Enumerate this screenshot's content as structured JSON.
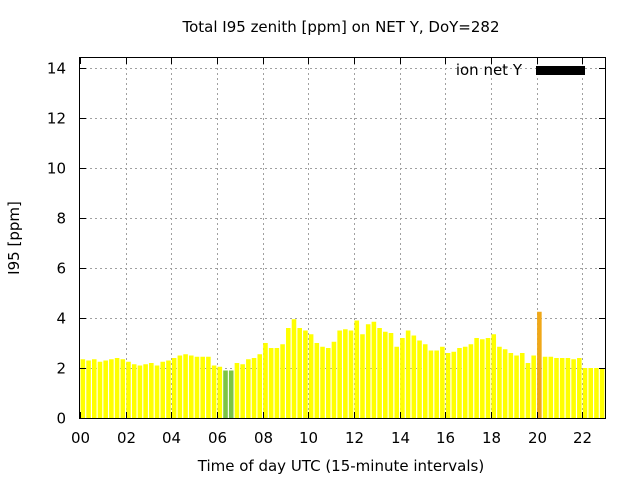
{
  "chart_data": {
    "type": "bar",
    "title": "Total I95 zenith [ppm] on NET Y, DoY=282",
    "xlabel": "Time of day UTC (15-minute intervals)",
    "ylabel": "I95 [ppm]",
    "xlim": [
      0,
      23
    ],
    "ylim": [
      0,
      14.4
    ],
    "x_ticks": [
      {
        "value": 0,
        "label": "00"
      },
      {
        "value": 2,
        "label": "02"
      },
      {
        "value": 4,
        "label": "04"
      },
      {
        "value": 6,
        "label": "06"
      },
      {
        "value": 8,
        "label": "08"
      },
      {
        "value": 10,
        "label": "10"
      },
      {
        "value": 12,
        "label": "12"
      },
      {
        "value": 14,
        "label": "14"
      },
      {
        "value": 16,
        "label": "16"
      },
      {
        "value": 18,
        "label": "18"
      },
      {
        "value": 20,
        "label": "20"
      },
      {
        "value": 22,
        "label": "22"
      }
    ],
    "y_ticks": [
      {
        "value": 0,
        "label": "0"
      },
      {
        "value": 2,
        "label": "2"
      },
      {
        "value": 4,
        "label": "4"
      },
      {
        "value": 6,
        "label": "6"
      },
      {
        "value": 8,
        "label": "8"
      },
      {
        "value": 10,
        "label": "10"
      },
      {
        "value": 12,
        "label": "12"
      },
      {
        "value": 14,
        "label": "14"
      }
    ],
    "grid": true,
    "legend": {
      "placement": "top-right",
      "label": "ion net Y",
      "color": "#000000"
    },
    "colors": {
      "low": "#7cc444",
      "mid": "#ffff00",
      "high": "#f0a818"
    },
    "interval_hours": 0.25,
    "values": [
      2.35,
      2.3,
      2.35,
      2.25,
      2.3,
      2.35,
      2.4,
      2.35,
      2.25,
      2.15,
      2.1,
      2.15,
      2.2,
      2.1,
      2.25,
      2.3,
      2.4,
      2.5,
      2.55,
      2.5,
      2.45,
      2.45,
      2.45,
      2.1,
      2.05,
      1.9,
      1.9,
      2.2,
      2.15,
      2.35,
      2.4,
      2.55,
      3.0,
      2.8,
      2.8,
      2.95,
      3.6,
      3.95,
      3.6,
      3.5,
      3.35,
      3.0,
      2.85,
      2.8,
      3.05,
      3.5,
      3.55,
      3.5,
      3.9,
      3.35,
      3.75,
      3.85,
      3.6,
      3.45,
      3.4,
      2.85,
      3.2,
      3.5,
      3.3,
      3.1,
      2.95,
      2.7,
      2.7,
      2.85,
      2.6,
      2.65,
      2.8,
      2.85,
      2.95,
      3.2,
      3.15,
      3.2,
      3.35,
      2.85,
      2.75,
      2.6,
      2.5,
      2.6,
      2.2,
      2.5,
      4.25,
      2.45,
      2.45,
      2.4,
      2.4,
      2.4,
      2.35,
      2.4,
      2.0,
      2.0,
      2.0,
      2.0
    ]
  }
}
